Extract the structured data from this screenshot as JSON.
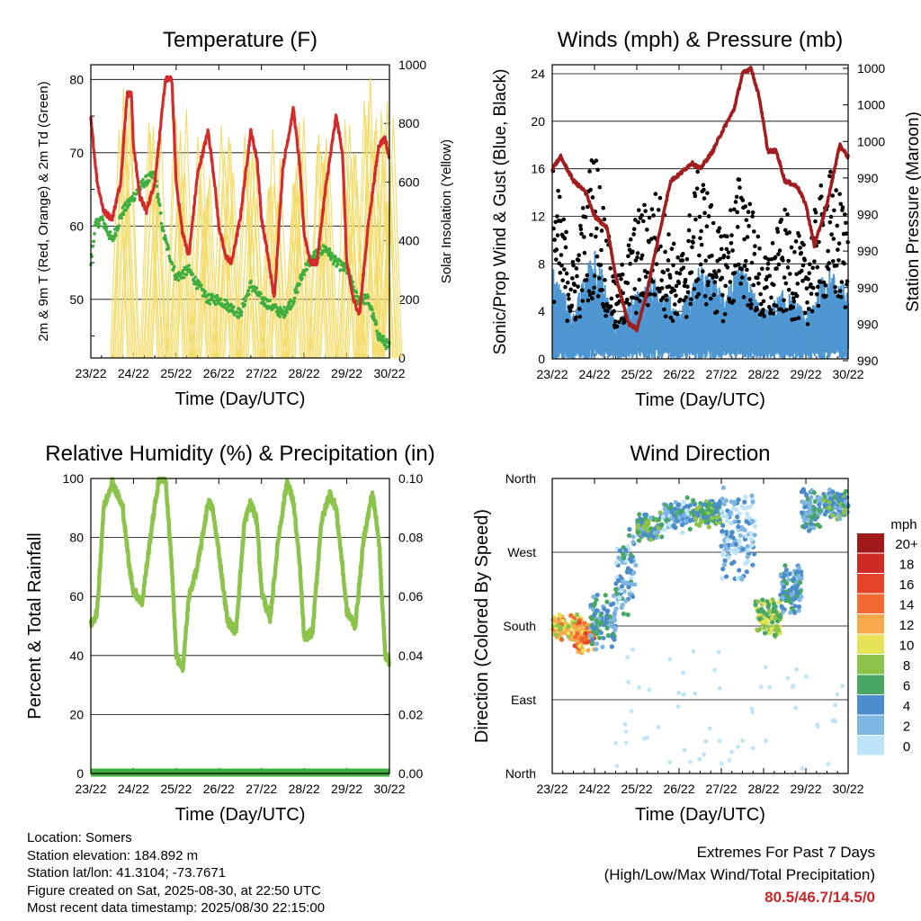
{
  "colors": {
    "temperature": "#d42a2a",
    "dewpoint": "#3fae3f",
    "solar": "#f4dc6a",
    "wind_gust": "#000000",
    "wind_speed": "#4f97d2",
    "pressure": "#a21d1d",
    "humidity": "#8cc34b",
    "precip": "#3fae3f",
    "extremes": "#c8272a"
  },
  "chart_data": [
    {
      "id": "temperature",
      "type": "line",
      "title": "Temperature (F)",
      "xlabel": "Time (Day/UTC)",
      "ylabel": "2m & 9m T (Red, Orange) & 2m Td (Green)",
      "y2label": "Solar Insolation (Yellow)",
      "x_ticks": [
        "23/22",
        "24/22",
        "25/22",
        "26/22",
        "27/22",
        "28/22",
        "29/22",
        "30/22"
      ],
      "ylim": [
        42,
        82
      ],
      "y_ticks": [
        50,
        60,
        70,
        80
      ],
      "y2lim": [
        0,
        1000
      ],
      "y2_ticks": [
        0,
        200,
        400,
        600,
        800,
        1000
      ],
      "grid": "horizontal",
      "series": [
        {
          "name": "2m & 9m T",
          "axis": "left",
          "x": [
            0,
            0.15,
            0.3,
            0.5,
            0.7,
            0.85,
            0.95,
            1.0,
            1.15,
            1.3,
            1.5,
            1.75,
            1.9,
            2.0,
            2.15,
            2.3,
            2.5,
            2.75,
            2.9,
            3.0,
            3.15,
            3.3,
            3.5,
            3.75,
            3.9,
            4.0,
            4.15,
            4.3,
            4.5,
            4.75,
            4.9,
            5.0,
            5.15,
            5.3,
            5.5,
            5.75,
            5.9,
            6.0,
            6.15,
            6.3,
            6.5,
            6.75,
            6.9,
            7.0
          ],
          "values": [
            74.5,
            66,
            62,
            61,
            66,
            78,
            78,
            71,
            64,
            62,
            66,
            80,
            80,
            66,
            59,
            56,
            67,
            73,
            66,
            60,
            56,
            55,
            61,
            73,
            69,
            61,
            56,
            50,
            68,
            76,
            68,
            59,
            55,
            55,
            65,
            75,
            70,
            55,
            50,
            48,
            60,
            71,
            72,
            69
          ]
        },
        {
          "name": "2m Td",
          "axis": "left",
          "x": [
            0,
            0.1,
            0.25,
            0.5,
            0.75,
            1.0,
            1.25,
            1.5,
            1.7,
            2.0,
            2.3,
            2.5,
            2.75,
            3.0,
            3.25,
            3.5,
            3.75,
            4.0,
            4.25,
            4.5,
            4.75,
            5.0,
            5.25,
            5.5,
            5.75,
            6.0,
            6.25,
            6.5,
            6.75,
            7.0
          ],
          "values": [
            55,
            60,
            61,
            58,
            62,
            64,
            66,
            67,
            59,
            53,
            54,
            52,
            50,
            50,
            49,
            48,
            52,
            50,
            49,
            48,
            50,
            54,
            56,
            57,
            55,
            54,
            50,
            50,
            45,
            43.5
          ]
        },
        {
          "name": "Solar Insolation",
          "axis": "right",
          "days": [
            0.8,
            1.5,
            2.1,
            2.65,
            3.2,
            3.75,
            4.3,
            4.85,
            5.45,
            6.1,
            6.55,
            6.95
          ],
          "peaks": [
            920,
            870,
            880,
            800,
            800,
            820,
            800,
            880,
            880,
            830,
            960,
            900
          ]
        }
      ]
    },
    {
      "id": "winds",
      "type": "scatter",
      "title": "Winds (mph) & Pressure (mb)",
      "xlabel": "Time (Day/UTC)",
      "ylabel": "Sonic/Prop Wind & Gust (Blue, Black)",
      "y2label": "Station Pressure (Maroon)",
      "x_ticks": [
        "23/22",
        "24/22",
        "25/22",
        "26/22",
        "27/22",
        "28/22",
        "29/22",
        "30/22"
      ],
      "ylim": [
        0,
        24
      ],
      "y_ticks": [
        0,
        4,
        8,
        12,
        16,
        20,
        24
      ],
      "y2_ticks": [
        "990",
        "990",
        "990",
        "990",
        "990",
        "990",
        "1000",
        "1000",
        "1000"
      ],
      "grid": "horizontal",
      "series": [
        {
          "name": "Gust",
          "envelope_x": [
            0,
            0.5,
            1.0,
            1.5,
            2.0,
            2.5,
            3.0,
            3.5,
            4.0,
            4.5,
            5.0,
            5.5,
            6.0,
            6.5,
            7.0
          ],
          "envelope": [
            16,
            8,
            18,
            6,
            12,
            14,
            8,
            16,
            10,
            16,
            8,
            12,
            9,
            16,
            12
          ]
        },
        {
          "name": "Wind",
          "envelope_x": [
            0,
            0.5,
            1.0,
            1.5,
            2.0,
            2.5,
            3.0,
            3.5,
            4.0,
            4.5,
            5.0,
            5.5,
            6.0,
            6.5,
            7.0
          ],
          "envelope": [
            8,
            4,
            10,
            3,
            6,
            7,
            4,
            8,
            6,
            8,
            4,
            6,
            4,
            8,
            6
          ]
        },
        {
          "name": "Station Pressure",
          "x": [
            0,
            0.2,
            0.5,
            0.8,
            1.0,
            1.3,
            1.5,
            1.8,
            2.0,
            2.2,
            2.5,
            2.8,
            3.0,
            3.3,
            3.5,
            3.8,
            4.0,
            4.3,
            4.5,
            4.7,
            4.9,
            5.1,
            5.3,
            5.5,
            5.8,
            6.0,
            6.2,
            6.5,
            6.8,
            7.0
          ],
          "values": [
            16,
            17,
            15,
            14,
            12,
            11,
            7,
            3,
            2.5,
            5,
            10,
            15,
            15.5,
            16.5,
            16,
            17.5,
            19,
            21,
            24,
            24.5,
            22,
            17.5,
            17.5,
            15,
            14.5,
            13,
            9.5,
            13,
            18,
            17
          ]
        }
      ]
    },
    {
      "id": "humidity",
      "type": "line",
      "title": "Relative Humidity (%) & Precipitation (in)",
      "xlabel": "Time (Day/UTC)",
      "ylabel": "Percent & Total Rainfall",
      "x_ticks": [
        "23/22",
        "24/22",
        "25/22",
        "26/22",
        "27/22",
        "28/22",
        "29/22",
        "30/22"
      ],
      "ylim": [
        0,
        100
      ],
      "y_ticks": [
        0,
        20,
        40,
        60,
        80,
        100
      ],
      "y2lim": [
        0,
        0.1
      ],
      "y2_ticks": [
        "0.00",
        "0.02",
        "0.04",
        "0.06",
        "0.08",
        "0.10"
      ],
      "grid": "horizontal",
      "series": [
        {
          "name": "Relative Humidity",
          "axis": "left",
          "x": [
            0,
            0.15,
            0.3,
            0.5,
            0.75,
            0.9,
            1.0,
            1.2,
            1.45,
            1.6,
            1.75,
            1.9,
            2.0,
            2.15,
            2.3,
            2.5,
            2.75,
            2.85,
            3.0,
            3.2,
            3.4,
            3.6,
            3.75,
            3.9,
            4.0,
            4.2,
            4.4,
            4.6,
            4.75,
            4.9,
            5.0,
            5.2,
            5.4,
            5.6,
            5.75,
            5.9,
            6.0,
            6.2,
            6.4,
            6.6,
            6.75,
            6.9,
            7.0
          ],
          "values": [
            50,
            55,
            90,
            99,
            90,
            70,
            62,
            58,
            86,
            100,
            100,
            70,
            40,
            35,
            60,
            70,
            92,
            90,
            75,
            52,
            48,
            85,
            92,
            85,
            62,
            52,
            80,
            99,
            92,
            70,
            46,
            48,
            85,
            95,
            90,
            70,
            55,
            50,
            80,
            95,
            80,
            40,
            38
          ]
        },
        {
          "name": "Total Precipitation",
          "axis": "right",
          "x": [
            0,
            7
          ],
          "values": [
            0,
            0
          ]
        }
      ]
    },
    {
      "id": "direction",
      "type": "scatter",
      "title": "Wind Direction",
      "xlabel": "Time (Day/UTC)",
      "ylabel": "Direction (Colored By Speed)",
      "x_ticks": [
        "23/22",
        "24/22",
        "25/22",
        "26/22",
        "27/22",
        "28/22",
        "29/22",
        "30/22"
      ],
      "ylim": [
        0,
        360
      ],
      "y_ticks": [
        "North",
        "East",
        "South",
        "West",
        "North"
      ],
      "grid": "horizontal",
      "legend": {
        "position": "right",
        "unit": "mph",
        "labels": [
          "20+",
          "18",
          "16",
          "14",
          "12",
          "10",
          "8",
          "6",
          "4",
          "2",
          "0"
        ],
        "colors": [
          "#a2191c",
          "#cf2a26",
          "#e64428",
          "#f06a31",
          "#f9a84b",
          "#e6e358",
          "#8cc34b",
          "#47a863",
          "#4a8ccc",
          "#7fb6e3",
          "#bde4f8"
        ]
      },
      "series": [
        {
          "name": "Direction",
          "segments": [
            {
              "x0": 0.0,
              "x1": 0.7,
              "center": 180,
              "spread": 18,
              "speed": 11
            },
            {
              "x0": 0.5,
              "x1": 1.0,
              "center": 165,
              "spread": 20,
              "speed": 13
            },
            {
              "x0": 0.9,
              "x1": 1.5,
              "center": 185,
              "spread": 40,
              "speed": 4
            },
            {
              "x0": 1.5,
              "x1": 2.0,
              "center": 245,
              "spread": 60,
              "speed": 3
            },
            {
              "x0": 2.0,
              "x1": 2.6,
              "center": 300,
              "spread": 20,
              "speed": 5
            },
            {
              "x0": 2.6,
              "x1": 3.3,
              "center": 315,
              "spread": 22,
              "speed": 3
            },
            {
              "x0": 3.3,
              "x1": 4.0,
              "center": 318,
              "spread": 18,
              "speed": 6
            },
            {
              "x0": 4.0,
              "x1": 4.8,
              "center": 290,
              "spread": 60,
              "speed": 2
            },
            {
              "x0": 4.8,
              "x1": 5.4,
              "center": 190,
              "spread": 25,
              "speed": 8
            },
            {
              "x0": 5.4,
              "x1": 5.9,
              "center": 225,
              "spread": 35,
              "speed": 4
            },
            {
              "x0": 5.9,
              "x1": 6.4,
              "center": 320,
              "spread": 30,
              "speed": 4
            },
            {
              "x0": 6.4,
              "x1": 7.0,
              "center": 330,
              "spread": 25,
              "speed": 5
            }
          ]
        }
      ]
    }
  ],
  "info": {
    "location": "Location: Somers",
    "elevation": "Station elevation: 184.892 m",
    "latlon": "Station lat/lon: 41.3104; -73.7671",
    "created": "Figure created on Sat, 2025-08-30, at 22:50 UTC",
    "recent": "Most recent data timestamp: 2025/08/30 22:15:00"
  },
  "extremes": {
    "title": "Extremes For Past 7 Days",
    "subtitle": "(High/Low/Max Wind/Total Precipitation)",
    "values": "80.5/46.7/14.5/0"
  }
}
